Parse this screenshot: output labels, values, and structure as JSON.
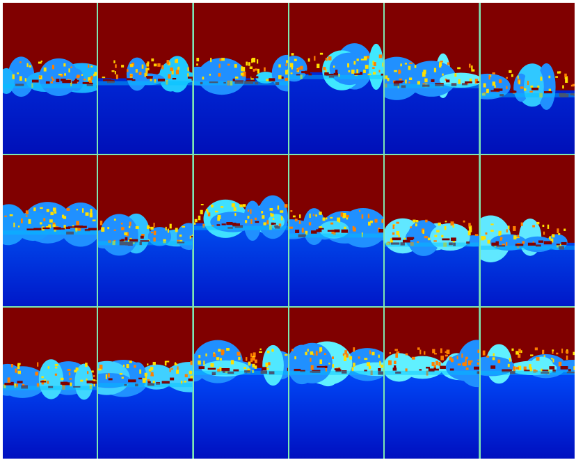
{
  "figure": {
    "rows": 3,
    "cols": 6,
    "colormap": "jet",
    "colormap_stops": [
      "#00008b",
      "#0000ff",
      "#00a0ff",
      "#00ffff",
      "#80ff80",
      "#ffff00",
      "#ff8000",
      "#800000"
    ],
    "separator_color": "#7fe8b0",
    "sky_color": "#800000",
    "tiles": [
      {
        "sky": 0.52,
        "ground": "far",
        "blob_color": "#1ab0ff",
        "accent": "#ffe000"
      },
      {
        "sky": 0.5,
        "ground": "far",
        "blob_color": "#20c8ff",
        "accent": "#ffd000"
      },
      {
        "sky": 0.5,
        "ground": "far",
        "blob_color": "#30d8ff",
        "accent": "#ffe000"
      },
      {
        "sky": 0.46,
        "ground": "far",
        "blob_color": "#40e8ff",
        "accent": "#ffe000"
      },
      {
        "sky": 0.52,
        "ground": "far",
        "blob_color": "#60f0ff",
        "accent": "#ffe000"
      },
      {
        "sky": 0.58,
        "ground": "far",
        "blob_color": "#30c8ff",
        "accent": "#ffe000"
      },
      {
        "sky": 0.48,
        "ground": "mid",
        "blob_color": "#1a98ff",
        "accent": "#ffe000"
      },
      {
        "sky": 0.55,
        "ground": "mid",
        "blob_color": "#30c0ff",
        "accent": "#ffe000"
      },
      {
        "sky": 0.45,
        "ground": "mid",
        "blob_color": "#40e0ff",
        "accent": "#ffe000"
      },
      {
        "sky": 0.5,
        "ground": "mid",
        "blob_color": "#40d8ff",
        "accent": "#ffe000"
      },
      {
        "sky": 0.56,
        "ground": "mid",
        "blob_color": "#60e8ff",
        "accent": "#ffe000"
      },
      {
        "sky": 0.58,
        "ground": "mid",
        "blob_color": "#60e8ff",
        "accent": "#ffe000"
      },
      {
        "sky": 0.5,
        "ground": "near",
        "blob_color": "#40d8ff",
        "accent": "#ffe000"
      },
      {
        "sky": 0.48,
        "ground": "near",
        "blob_color": "#40d0ff",
        "accent": "#ffe000"
      },
      {
        "sky": 0.4,
        "ground": "near",
        "blob_color": "#50e8ff",
        "accent": "#ffe000"
      },
      {
        "sky": 0.4,
        "ground": "near",
        "blob_color": "#60f0ff",
        "accent": "#ffe000"
      },
      {
        "sky": 0.4,
        "ground": "near",
        "blob_color": "#60f0ff",
        "accent": "#ff8000"
      },
      {
        "sky": 0.4,
        "ground": "near",
        "blob_color": "#60f0ff",
        "accent": "#ffe000"
      }
    ]
  }
}
